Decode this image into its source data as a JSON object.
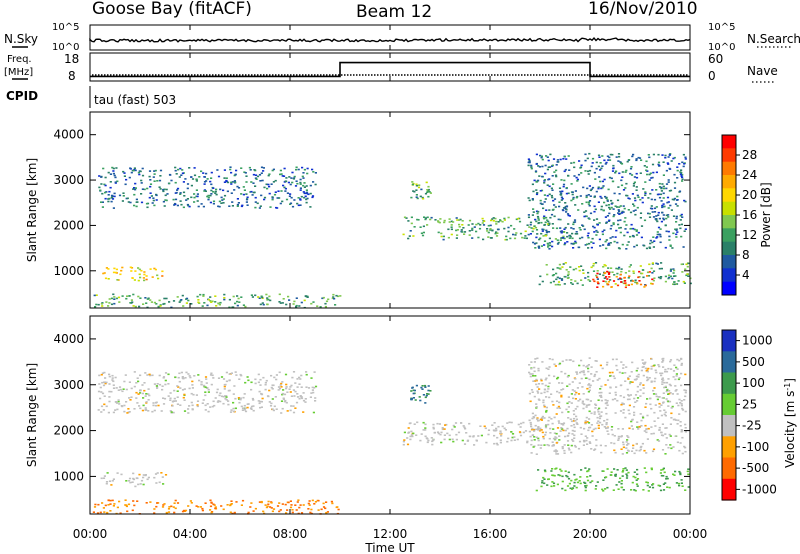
{
  "header": {
    "station": "Goose Bay (fitACF)",
    "beam": "Beam 12",
    "date": "16/Nov/2010"
  },
  "top_panels": {
    "nsky_label": "N.Sky",
    "nsearch_label": "N.Search",
    "count_ticks_left": [
      "10^5",
      "10^0"
    ],
    "count_ticks_right": [
      "10^5",
      "10^0"
    ],
    "freq_label": "Freq.",
    "freq_unit": "[MHz]",
    "freq_ticks": [
      "18",
      "8"
    ],
    "nave_label": "Nave",
    "nave_ticks": [
      "60",
      "0"
    ],
    "cpid_label": "CPID",
    "cpid_text": "tau (fast) 503"
  },
  "power_colorbar": {
    "title": "Power [dB]",
    "ticks": [
      "28",
      "24",
      "20",
      "16",
      "12",
      "8",
      "4"
    ],
    "colors": [
      "#ff0000",
      "#ff3a00",
      "#ff7a00",
      "#ffaa00",
      "#ffd700",
      "#c8e000",
      "#80c850",
      "#3aa060",
      "#2a8068",
      "#1f5aa0",
      "#1030d0",
      "#0000ff"
    ]
  },
  "velocity_colorbar": {
    "title": "Velocity [m s",
    "title_sup": "-1",
    "title_end": "]",
    "ticks": [
      "1000",
      "500",
      "100",
      "25",
      "-25",
      "-100",
      "-500",
      "-1000"
    ],
    "colors": [
      "#1a30c0",
      "#2a6a9a",
      "#3c9a4c",
      "#66cc33",
      "#c0c0c0",
      "#ffa000",
      "#ff6a00",
      "#ff0000"
    ]
  },
  "axes": {
    "ylabel": "Slant Range [km]",
    "xlabel": "Time UT",
    "y_ticks": [
      "4000",
      "3000",
      "2000",
      "1000"
    ],
    "x_ticks": [
      "00:00",
      "04:00",
      "08:00",
      "12:00",
      "16:00",
      "20:00",
      "00:00"
    ]
  },
  "chart_data": {
    "type": "heatmap",
    "x_range": [
      "00:00",
      "24:00"
    ],
    "ylim": [
      180,
      4500
    ],
    "panels": [
      {
        "name": "Power",
        "echo_regions": [
          {
            "t_start": 0.3,
            "t_end": 9.0,
            "range_start": 2400,
            "range_end": 3300,
            "value": 8
          },
          {
            "t_start": 0.4,
            "t_end": 3.0,
            "range_start": 800,
            "range_end": 1100,
            "value": 20
          },
          {
            "t_start": 0.0,
            "t_end": 10.0,
            "range_start": 200,
            "range_end": 500,
            "value": 12
          },
          {
            "t_start": 12.8,
            "t_end": 13.6,
            "range_start": 2600,
            "range_end": 3000,
            "value": 12
          },
          {
            "t_start": 12.5,
            "t_end": 19.0,
            "range_start": 1700,
            "range_end": 2200,
            "value": 12
          },
          {
            "t_start": 17.5,
            "t_end": 23.8,
            "range_start": 1500,
            "range_end": 3600,
            "value": 8
          },
          {
            "t_start": 17.8,
            "t_end": 24.0,
            "range_start": 700,
            "range_end": 1200,
            "value": 12
          },
          {
            "t_start": 20.0,
            "t_end": 22.5,
            "range_start": 650,
            "range_end": 1000,
            "value": 28
          }
        ]
      },
      {
        "name": "Velocity",
        "echo_regions": [
          {
            "t_start": 0.3,
            "t_end": 9.0,
            "range_start": 2400,
            "range_end": 3300,
            "value": 0
          },
          {
            "t_start": 0.4,
            "t_end": 3.0,
            "range_start": 800,
            "range_end": 1100,
            "value": 0
          },
          {
            "t_start": 0.0,
            "t_end": 10.0,
            "range_start": 200,
            "range_end": 500,
            "value": -100
          },
          {
            "t_start": 12.8,
            "t_end": 13.6,
            "range_start": 2600,
            "range_end": 3000,
            "value": 500
          },
          {
            "t_start": 12.5,
            "t_end": 19.0,
            "range_start": 1700,
            "range_end": 2200,
            "value": 0
          },
          {
            "t_start": 17.5,
            "t_end": 23.8,
            "range_start": 1500,
            "range_end": 3600,
            "value": 0
          },
          {
            "t_start": 17.8,
            "t_end": 24.0,
            "range_start": 700,
            "range_end": 1200,
            "value": 100
          }
        ]
      }
    ],
    "frequency_MHz": {
      "segments": [
        {
          "t_start": 0,
          "t_end": 10,
          "value": 10
        },
        {
          "t_start": 10,
          "t_end": 20,
          "value": 16
        },
        {
          "t_start": 20,
          "t_end": 24,
          "value": 10
        }
      ]
    },
    "nave_approx": 8
  }
}
